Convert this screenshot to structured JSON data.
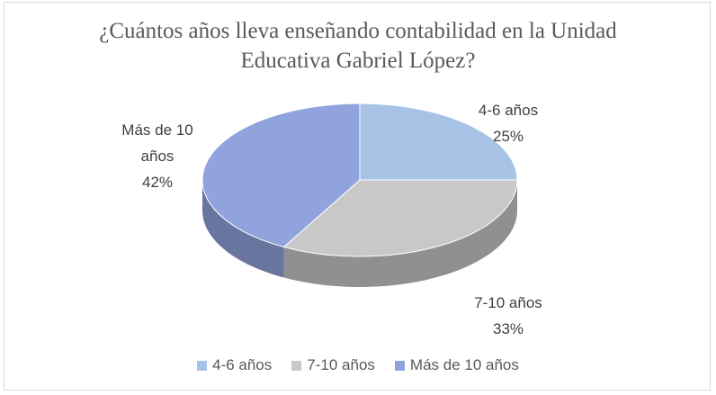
{
  "chart_data": {
    "type": "pie",
    "title": "¿Cuántos años lleva enseñando contabilidad en la Unidad Educativa Gabriel López?",
    "categories": [
      "4-6 años",
      "7-10 años",
      "Más de 10 años"
    ],
    "values": [
      25,
      33,
      42
    ],
    "value_labels": [
      "25%",
      "33%",
      "42%"
    ],
    "colors": [
      "#a6c3e6",
      "#c8c8c8",
      "#91a3dc"
    ],
    "legend": "bottom"
  }
}
